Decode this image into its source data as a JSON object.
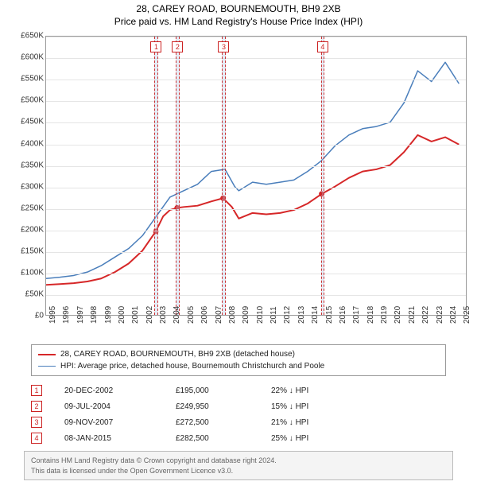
{
  "title": {
    "line1": "28, CAREY ROAD, BOURNEMOUTH, BH9 2XB",
    "line2": "Price paid vs. HM Land Registry's House Price Index (HPI)"
  },
  "chart": {
    "type": "line",
    "background_color": "#ffffff",
    "grid_color": "#e5e5e5",
    "border_color": "#999999",
    "axis_label_fontsize": 10,
    "axis_label_color": "#333333",
    "y": {
      "min": 0,
      "max": 650000,
      "step": 50000,
      "ticks": [
        "£0",
        "£50K",
        "£100K",
        "£150K",
        "£200K",
        "£250K",
        "£300K",
        "£350K",
        "£400K",
        "£450K",
        "£500K",
        "£550K",
        "£600K",
        "£650K"
      ]
    },
    "x": {
      "min": 1995,
      "max": 2025.5,
      "ticks": [
        1995,
        1996,
        1997,
        1998,
        1999,
        2000,
        2001,
        2002,
        2003,
        2004,
        2005,
        2006,
        2007,
        2008,
        2009,
        2010,
        2011,
        2012,
        2013,
        2014,
        2015,
        2016,
        2017,
        2018,
        2019,
        2020,
        2021,
        2022,
        2023,
        2024,
        2025
      ]
    },
    "marker_bands": [
      {
        "label": "1",
        "x": 2002.97,
        "width": 0.25
      },
      {
        "label": "2",
        "x": 2004.52,
        "width": 0.25
      },
      {
        "label": "3",
        "x": 2007.86,
        "width": 0.25
      },
      {
        "label": "4",
        "x": 2015.02,
        "width": 0.25
      }
    ],
    "marker_band_fill": "rgba(180,200,230,0.35)",
    "marker_band_border": "rgba(200,30,30,0.9)",
    "marker_label_border": "#cc2222",
    "marker_label_color": "#cc2222",
    "series": [
      {
        "name": "property",
        "color": "#d62728",
        "width": 2,
        "points": [
          [
            1995,
            70000
          ],
          [
            1996,
            72000
          ],
          [
            1997,
            74000
          ],
          [
            1998,
            78000
          ],
          [
            1999,
            85000
          ],
          [
            2000,
            100000
          ],
          [
            2001,
            120000
          ],
          [
            2002,
            150000
          ],
          [
            2002.97,
            195000
          ],
          [
            2003.5,
            230000
          ],
          [
            2004,
            245000
          ],
          [
            2004.52,
            249950
          ],
          [
            2005,
            252000
          ],
          [
            2006,
            255000
          ],
          [
            2007,
            265000
          ],
          [
            2007.86,
            272500
          ],
          [
            2008.5,
            252000
          ],
          [
            2009,
            225000
          ],
          [
            2010,
            238000
          ],
          [
            2011,
            235000
          ],
          [
            2012,
            238000
          ],
          [
            2013,
            245000
          ],
          [
            2014,
            260000
          ],
          [
            2015.02,
            282500
          ],
          [
            2016,
            300000
          ],
          [
            2017,
            320000
          ],
          [
            2018,
            335000
          ],
          [
            2019,
            340000
          ],
          [
            2020,
            350000
          ],
          [
            2021,
            380000
          ],
          [
            2022,
            420000
          ],
          [
            2023,
            405000
          ],
          [
            2024,
            415000
          ],
          [
            2025,
            398000
          ]
        ],
        "sale_points": [
          [
            2002.97,
            195000
          ],
          [
            2004.52,
            249950
          ],
          [
            2007.86,
            272500
          ],
          [
            2015.02,
            282500
          ]
        ]
      },
      {
        "name": "hpi",
        "color": "#4a7ebb",
        "width": 1.5,
        "points": [
          [
            1995,
            85000
          ],
          [
            1996,
            88000
          ],
          [
            1997,
            92000
          ],
          [
            1998,
            100000
          ],
          [
            1999,
            115000
          ],
          [
            2000,
            135000
          ],
          [
            2001,
            155000
          ],
          [
            2002,
            185000
          ],
          [
            2003,
            230000
          ],
          [
            2004,
            275000
          ],
          [
            2005,
            290000
          ],
          [
            2006,
            305000
          ],
          [
            2007,
            335000
          ],
          [
            2008,
            340000
          ],
          [
            2008.7,
            300000
          ],
          [
            2009,
            290000
          ],
          [
            2010,
            310000
          ],
          [
            2011,
            305000
          ],
          [
            2012,
            310000
          ],
          [
            2013,
            315000
          ],
          [
            2014,
            335000
          ],
          [
            2015,
            360000
          ],
          [
            2016,
            395000
          ],
          [
            2017,
            420000
          ],
          [
            2018,
            435000
          ],
          [
            2019,
            440000
          ],
          [
            2020,
            450000
          ],
          [
            2021,
            495000
          ],
          [
            2022,
            570000
          ],
          [
            2023,
            545000
          ],
          [
            2024,
            590000
          ],
          [
            2025,
            540000
          ]
        ]
      }
    ]
  },
  "legend": {
    "border_color": "#999999",
    "fontsize": 10,
    "items": [
      {
        "color": "#d62728",
        "width": 2,
        "label": "28, CAREY ROAD, BOURNEMOUTH, BH9 2XB (detached house)"
      },
      {
        "color": "#4a7ebb",
        "width": 1.5,
        "label": "HPI: Average price, detached house, Bournemouth Christchurch and Poole"
      }
    ]
  },
  "sales": [
    {
      "n": "1",
      "date": "20-DEC-2002",
      "price": "£195,000",
      "delta": "22% ↓ HPI"
    },
    {
      "n": "2",
      "date": "09-JUL-2004",
      "price": "£249,950",
      "delta": "15% ↓ HPI"
    },
    {
      "n": "3",
      "date": "09-NOV-2007",
      "price": "£272,500",
      "delta": "21% ↓ HPI"
    },
    {
      "n": "4",
      "date": "08-JAN-2015",
      "price": "£282,500",
      "delta": "25% ↓ HPI"
    }
  ],
  "footer": {
    "line1": "Contains HM Land Registry data © Crown copyright and database right 2024.",
    "line2": "This data is licensed under the Open Government Licence v3.0.",
    "background": "#f4f4f4",
    "border": "#bbbbbb",
    "color": "#666666"
  }
}
